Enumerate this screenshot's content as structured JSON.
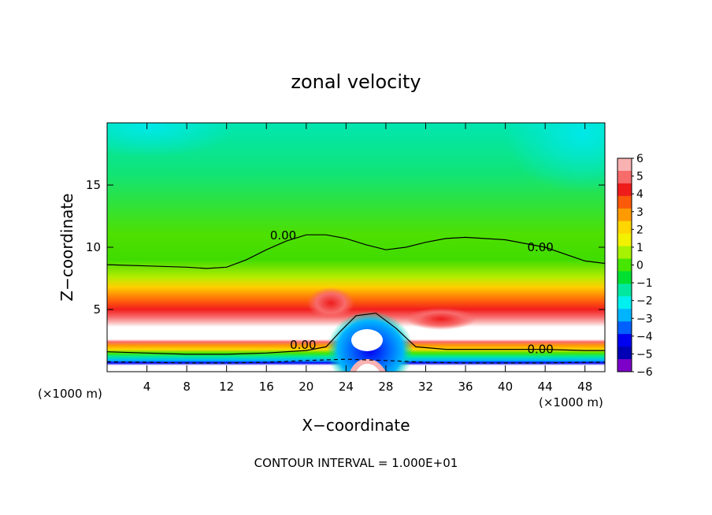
{
  "chart_data": {
    "type": "heatmap",
    "title": "zonal velocity",
    "xlabel": "X−coordinate",
    "ylabel": "Z−coordinate",
    "x_unit_left": "(×1000 m)",
    "x_unit_right": "(×1000 m)",
    "footer": "CONTOUR INTERVAL = 1.000E+01",
    "xlim": [
      0,
      50
    ],
    "ylim": [
      0,
      20
    ],
    "x_ticks": [
      4,
      8,
      12,
      16,
      20,
      24,
      28,
      32,
      36,
      40,
      44,
      48
    ],
    "y_ticks": [
      5,
      10,
      15
    ],
    "x_tick_labels": [
      "4",
      "8",
      "12",
      "16",
      "20",
      "24",
      "28",
      "32",
      "36",
      "40",
      "44",
      "48"
    ],
    "y_tick_labels": [
      "5",
      "10",
      "15"
    ],
    "colorbar": {
      "levels": [
        6,
        5,
        4,
        3,
        2,
        1,
        0,
        -1,
        -2,
        -3,
        -4,
        -5,
        -6
      ],
      "labels": [
        "6",
        "5",
        "4",
        "3",
        "2",
        "1",
        "0",
        "−1",
        "−2",
        "−3",
        "−4",
        "−5",
        "−6"
      ],
      "colors": [
        "#f9b2b2",
        "#f86b6b",
        "#ef1c1c",
        "#fb5a0a",
        "#ff9b00",
        "#ffd600",
        "#f2f200",
        "#a6f200",
        "#46e600",
        "#00e032",
        "#00e8a0",
        "#00f0f0",
        "#00b4ff",
        "#0060ff",
        "#0000f0",
        "#0000b4",
        "#7c00c8"
      ]
    },
    "contours": [
      {
        "label": "0.00",
        "level": 0.0,
        "style": "solid",
        "x": [
          0,
          4,
          8,
          10,
          12,
          14,
          16,
          18,
          20,
          22,
          24,
          26,
          28,
          30,
          32,
          34,
          36,
          40,
          44,
          48,
          50
        ],
        "y": [
          8.6,
          8.5,
          8.4,
          8.3,
          8.4,
          9.0,
          9.8,
          10.5,
          11.0,
          11.0,
          10.7,
          10.2,
          9.8,
          10.0,
          10.4,
          10.7,
          10.8,
          10.6,
          10.0,
          8.9,
          8.7
        ]
      },
      {
        "label": "0.00",
        "level": 0.0,
        "style": "solid",
        "x": [
          0,
          4,
          8,
          12,
          16,
          20,
          22,
          23.5,
          25,
          27,
          29,
          31,
          34,
          40,
          44,
          48,
          50
        ],
        "y": [
          1.6,
          1.5,
          1.4,
          1.4,
          1.5,
          1.7,
          2.0,
          3.3,
          4.5,
          4.7,
          3.5,
          2.0,
          1.8,
          1.8,
          1.8,
          1.7,
          1.7
        ]
      },
      {
        "label": "",
        "level": -10.0,
        "style": "dashed",
        "x": [
          0,
          4,
          8,
          12,
          16,
          20,
          24,
          28,
          32,
          36,
          40,
          44,
          48,
          50
        ],
        "y": [
          0.8,
          0.75,
          0.7,
          0.7,
          0.75,
          0.9,
          1.0,
          0.9,
          0.75,
          0.7,
          0.7,
          0.7,
          0.75,
          0.75
        ]
      }
    ],
    "grid": false,
    "legend_placement": "right"
  }
}
